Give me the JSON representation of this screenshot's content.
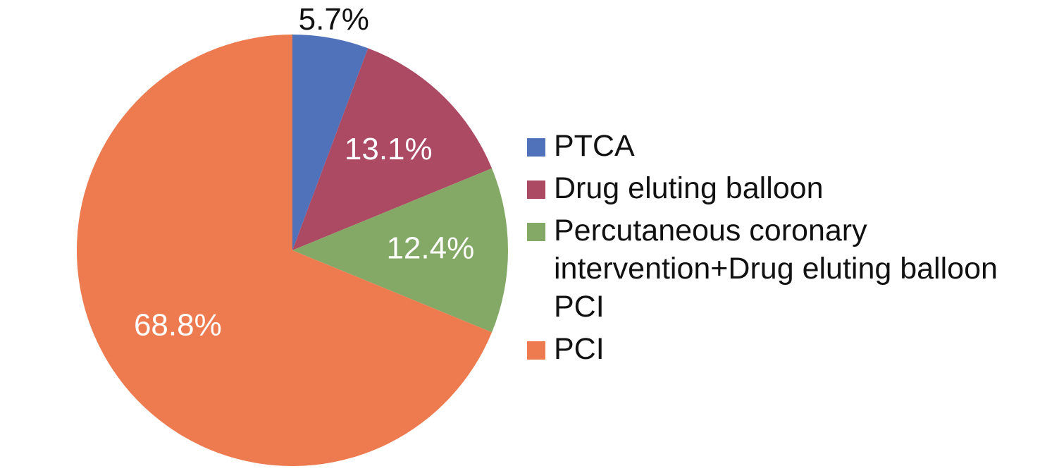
{
  "chart_data": {
    "type": "pie",
    "title": "",
    "start_angle_deg": 0,
    "direction": "clockwise",
    "legend_position": "right",
    "slices": [
      {
        "label": "PTCA",
        "value": 5.7,
        "display": "5.7%",
        "color": "#4f72bb",
        "label_color": "#111111",
        "label_outside": true
      },
      {
        "label": "Drug eluting balloon",
        "value": 13.1,
        "display": "13.1%",
        "color": "#ac4a64",
        "label_color": "#ffffff",
        "label_outside": false
      },
      {
        "label": "Percutaneous coronary intervention+Drug eluting balloon PCI",
        "value": 12.4,
        "display": "12.4%",
        "color": "#84a966",
        "label_color": "#ffffff",
        "label_outside": false
      },
      {
        "label": "PCI",
        "value": 68.8,
        "display": "68.8%",
        "color": "#ee7a4f",
        "label_color": "#ffffff",
        "label_outside": false
      }
    ]
  }
}
